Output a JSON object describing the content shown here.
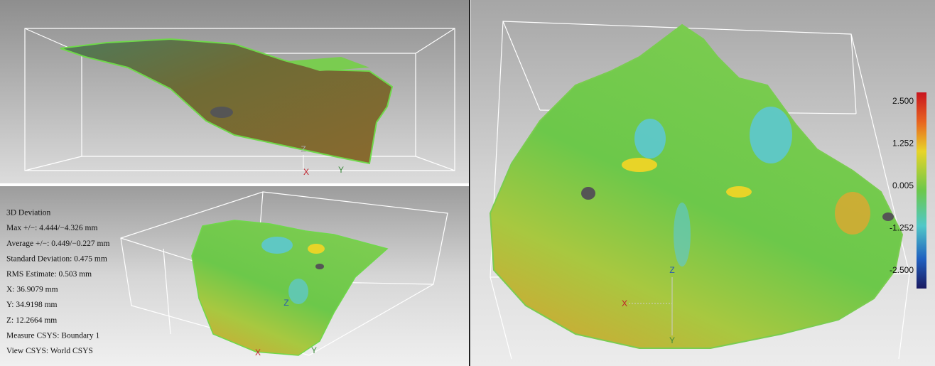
{
  "top_view": {
    "axes": {
      "z": "Z",
      "x": "X",
      "y": "Y"
    }
  },
  "bottom_view": {
    "axes": {
      "z": "Z",
      "x": "X",
      "y": "Y"
    }
  },
  "main_view": {
    "axes": {
      "z": "Z",
      "x": "X",
      "y": "Y"
    },
    "color_scale": {
      "labels": [
        "2.500",
        "1.252",
        "0.005",
        "-1.252",
        "-2.500"
      ]
    }
  },
  "info_panel": {
    "lines": [
      "3D Deviation",
      "Max +/−: 4.444/−4.326 mm",
      "Average +/−: 0.449/−0.227 mm",
      "Standard Deviation: 0.475 mm",
      "RMS Estimate: 0.503 mm",
      "X: 36.9079 mm",
      "Y: 34.9198 mm",
      "Z: 12.2664 mm",
      "Measure CSYS: Boundary 1",
      "View CSYS: World CSYS"
    ]
  }
}
